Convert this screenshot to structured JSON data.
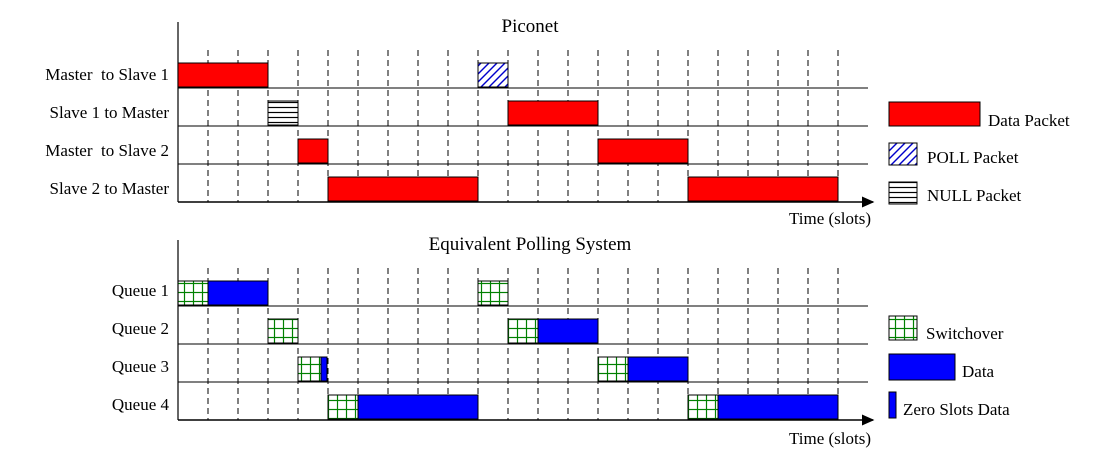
{
  "colors": {
    "data_packet": "#ff0000",
    "poll_packet": "#0000cc",
    "polling_data": "#0000ff",
    "switchover": "#008000",
    "line": "#000000"
  },
  "piconet": {
    "title": "Piconet",
    "rows": [
      "Master  to Slave 1",
      "Slave 1 to Master",
      "Master  to Slave 2",
      "Slave 2 to Master"
    ],
    "axis_label": "Time (slots)",
    "slot_count": 22,
    "blocks": [
      {
        "row": 0,
        "start": 0,
        "end": 3,
        "kind": "data"
      },
      {
        "row": 0,
        "start": 10,
        "end": 11,
        "kind": "poll"
      },
      {
        "row": 1,
        "start": 3,
        "end": 4,
        "kind": "null"
      },
      {
        "row": 1,
        "start": 11,
        "end": 14,
        "kind": "data"
      },
      {
        "row": 2,
        "start": 4,
        "end": 5,
        "kind": "data"
      },
      {
        "row": 2,
        "start": 14,
        "end": 17,
        "kind": "data"
      },
      {
        "row": 3,
        "start": 5,
        "end": 10,
        "kind": "data"
      },
      {
        "row": 3,
        "start": 17,
        "end": 22,
        "kind": "data"
      }
    ],
    "legend": [
      {
        "kind": "data",
        "label": "Data Packet"
      },
      {
        "kind": "poll",
        "label": "POLL Packet"
      },
      {
        "kind": "null",
        "label": "NULL Packet"
      }
    ]
  },
  "polling": {
    "title": "Equivalent Polling System",
    "rows": [
      "Queue 1",
      "Queue 2",
      "Queue 3",
      "Queue 4"
    ],
    "axis_label": "Time (slots)",
    "slot_count": 22,
    "blocks": [
      {
        "row": 0,
        "start": 0,
        "end": 1,
        "kind": "switchover"
      },
      {
        "row": 0,
        "start": 1,
        "end": 3,
        "kind": "data"
      },
      {
        "row": 0,
        "start": 10,
        "end": 11,
        "kind": "switchover"
      },
      {
        "row": 1,
        "start": 3,
        "end": 4,
        "kind": "switchover"
      },
      {
        "row": 1,
        "start": 11,
        "end": 12,
        "kind": "switchover"
      },
      {
        "row": 1,
        "start": 12,
        "end": 14,
        "kind": "data"
      },
      {
        "row": 2,
        "start": 4,
        "end": 5,
        "kind": "switchover_zero"
      },
      {
        "row": 2,
        "start": 14,
        "end": 15,
        "kind": "switchover"
      },
      {
        "row": 2,
        "start": 15,
        "end": 17,
        "kind": "data"
      },
      {
        "row": 3,
        "start": 5,
        "end": 6,
        "kind": "switchover"
      },
      {
        "row": 3,
        "start": 6,
        "end": 10,
        "kind": "data"
      },
      {
        "row": 3,
        "start": 17,
        "end": 18,
        "kind": "switchover"
      },
      {
        "row": 3,
        "start": 18,
        "end": 22,
        "kind": "data"
      }
    ],
    "legend": [
      {
        "kind": "switchover",
        "label": "Switchover"
      },
      {
        "kind": "data",
        "label": "Data"
      },
      {
        "kind": "zero",
        "label": "Zero Slots Data"
      }
    ]
  }
}
